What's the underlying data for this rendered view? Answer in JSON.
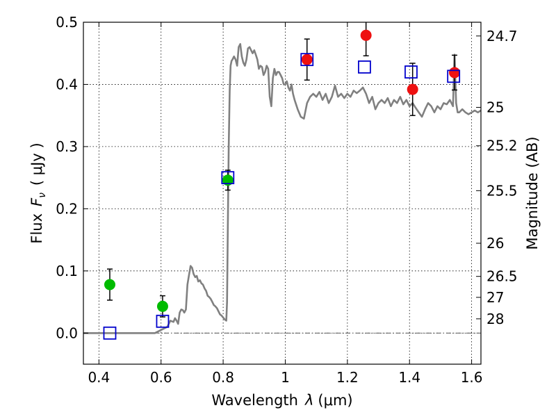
{
  "chart_data": {
    "type": "scatter",
    "title": "",
    "xlabel_text": "Wavelength",
    "xlabel_symbol": "λ",
    "xlabel_unit": "(μm)",
    "ylabel_text": "Flux",
    "ylabel_symbol": "F",
    "ylabel_subscript": "ν",
    "ylabel_unit": "( μJy )",
    "y2label": "Magnitude (AB)",
    "xlim": [
      0.35,
      1.63
    ],
    "ylim": [
      -0.05,
      0.5
    ],
    "grid": true,
    "x_ticks": [
      {
        "value": 0.4,
        "label": "0.4"
      },
      {
        "value": 0.6,
        "label": "0.6"
      },
      {
        "value": 0.8,
        "label": "0.8"
      },
      {
        "value": 1.0,
        "label": "1"
      },
      {
        "value": 1.2,
        "label": "1.2"
      },
      {
        "value": 1.4,
        "label": "1.4"
      },
      {
        "value": 1.6,
        "label": "1.6"
      }
    ],
    "y_ticks": [
      {
        "value": 0.0,
        "label": "0.0"
      },
      {
        "value": 0.1,
        "label": "0.1"
      },
      {
        "value": 0.2,
        "label": "0.2"
      },
      {
        "value": 0.3,
        "label": "0.3"
      },
      {
        "value": 0.4,
        "label": "0.4"
      },
      {
        "value": 0.5,
        "label": "0.5"
      }
    ],
    "y2_ticks": [
      {
        "flux": 0.4779,
        "label": "24.7"
      },
      {
        "flux": 0.3631,
        "label": "25"
      },
      {
        "flux": 0.3013,
        "label": "25.2"
      },
      {
        "flux": 0.2291,
        "label": "25.5"
      },
      {
        "flux": 0.1445,
        "label": "26"
      },
      {
        "flux": 0.0912,
        "label": "26.5"
      },
      {
        "flux": 0.0575,
        "label": "27"
      },
      {
        "flux": 0.0229,
        "label": "28"
      }
    ],
    "zero_line": {
      "y": 0.0,
      "color": "#555555"
    },
    "series": [
      {
        "kind": "line",
        "color": "#808080",
        "x": [
          0.35,
          0.58,
          0.6,
          0.62,
          0.63,
          0.64,
          0.645,
          0.65,
          0.655,
          0.66,
          0.665,
          0.67,
          0.675,
          0.68,
          0.685,
          0.69,
          0.695,
          0.7,
          0.705,
          0.71,
          0.715,
          0.72,
          0.725,
          0.73,
          0.735,
          0.74,
          0.745,
          0.75,
          0.755,
          0.76,
          0.765,
          0.77,
          0.775,
          0.78,
          0.785,
          0.79,
          0.795,
          0.8,
          0.805,
          0.81,
          0.8125,
          0.815,
          0.818,
          0.821,
          0.824,
          0.827,
          0.83,
          0.835,
          0.84,
          0.845,
          0.85,
          0.855,
          0.86,
          0.865,
          0.87,
          0.875,
          0.88,
          0.885,
          0.89,
          0.895,
          0.9,
          0.905,
          0.91,
          0.915,
          0.92,
          0.925,
          0.93,
          0.935,
          0.94,
          0.945,
          0.95,
          0.955,
          0.96,
          0.965,
          0.97,
          0.975,
          0.98,
          0.985,
          0.99,
          0.995,
          1.0,
          1.005,
          1.01,
          1.015,
          1.02,
          1.025,
          1.03,
          1.04,
          1.05,
          1.06,
          1.07,
          1.08,
          1.09,
          1.1,
          1.11,
          1.12,
          1.13,
          1.14,
          1.15,
          1.16,
          1.17,
          1.18,
          1.19,
          1.2,
          1.21,
          1.22,
          1.23,
          1.24,
          1.25,
          1.26,
          1.27,
          1.28,
          1.29,
          1.3,
          1.31,
          1.32,
          1.33,
          1.34,
          1.35,
          1.36,
          1.37,
          1.38,
          1.39,
          1.4,
          1.41,
          1.42,
          1.43,
          1.44,
          1.45,
          1.46,
          1.47,
          1.48,
          1.49,
          1.5,
          1.51,
          1.52,
          1.53,
          1.54,
          1.545,
          1.55,
          1.555,
          1.56,
          1.57,
          1.58,
          1.59,
          1.6,
          1.61,
          1.62,
          1.63
        ],
        "y": [
          0.0,
          0.0,
          0.005,
          0.01,
          0.02,
          0.018,
          0.024,
          0.02,
          0.015,
          0.033,
          0.038,
          0.037,
          0.033,
          0.038,
          0.078,
          0.093,
          0.108,
          0.105,
          0.095,
          0.09,
          0.092,
          0.083,
          0.085,
          0.08,
          0.078,
          0.072,
          0.068,
          0.06,
          0.058,
          0.055,
          0.05,
          0.045,
          0.043,
          0.04,
          0.035,
          0.03,
          0.028,
          0.025,
          0.022,
          0.02,
          0.05,
          0.17,
          0.3,
          0.39,
          0.43,
          0.438,
          0.44,
          0.445,
          0.44,
          0.43,
          0.46,
          0.465,
          0.445,
          0.435,
          0.43,
          0.44,
          0.458,
          0.46,
          0.455,
          0.45,
          0.455,
          0.448,
          0.44,
          0.425,
          0.43,
          0.428,
          0.415,
          0.42,
          0.43,
          0.425,
          0.38,
          0.365,
          0.41,
          0.425,
          0.415,
          0.42,
          0.42,
          0.415,
          0.41,
          0.4,
          0.4,
          0.405,
          0.395,
          0.39,
          0.4,
          0.385,
          0.375,
          0.36,
          0.348,
          0.345,
          0.37,
          0.38,
          0.385,
          0.38,
          0.388,
          0.375,
          0.385,
          0.37,
          0.38,
          0.398,
          0.38,
          0.385,
          0.378,
          0.385,
          0.38,
          0.39,
          0.386,
          0.39,
          0.395,
          0.385,
          0.37,
          0.38,
          0.36,
          0.37,
          0.375,
          0.37,
          0.378,
          0.365,
          0.375,
          0.37,
          0.38,
          0.368,
          0.375,
          0.365,
          0.37,
          0.362,
          0.355,
          0.348,
          0.36,
          0.37,
          0.365,
          0.355,
          0.365,
          0.36,
          0.37,
          0.368,
          0.375,
          0.365,
          0.448,
          0.37,
          0.355,
          0.355,
          0.36,
          0.355,
          0.352,
          0.355,
          0.358,
          0.355,
          0.358
        ]
      },
      {
        "kind": "points",
        "marker": "circle",
        "color": "#00bb00",
        "x": [
          0.435,
          0.605,
          0.815
        ],
        "y": [
          0.078,
          0.043,
          0.246
        ],
        "yerr": [
          0.025,
          0.017,
          0.016
        ]
      },
      {
        "kind": "points",
        "marker": "circle",
        "color": "#ee1111",
        "x": [
          1.07,
          1.26,
          1.41,
          1.545
        ],
        "y": [
          0.44,
          0.479,
          0.392,
          0.419
        ],
        "yerr": [
          0.033,
          0.033,
          0.042,
          0.028
        ]
      },
      {
        "kind": "points",
        "marker": "square",
        "color": "#0000cc",
        "x": [
          0.435,
          0.605,
          0.815,
          1.07,
          1.255,
          1.405,
          1.542
        ],
        "y": [
          0.0,
          0.019,
          0.25,
          0.44,
          0.428,
          0.42,
          0.413
        ]
      }
    ]
  }
}
